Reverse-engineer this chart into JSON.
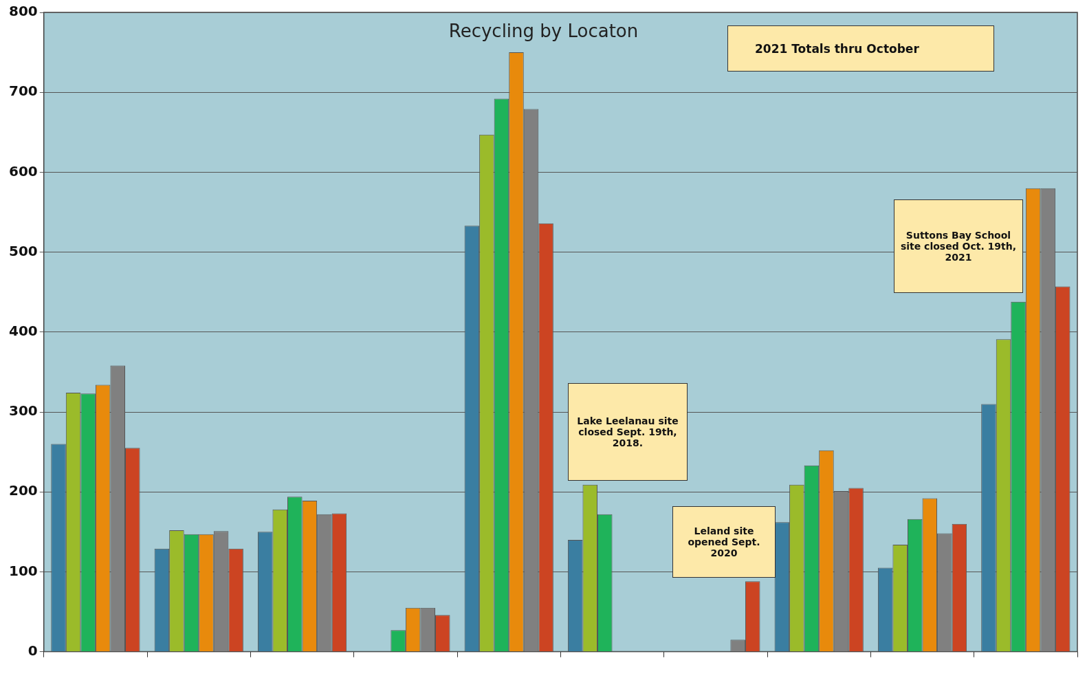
{
  "chart_data": {
    "type": "bar",
    "title": "Recycling by Locaton",
    "categories": [
      null,
      null,
      null,
      null,
      null,
      null,
      null,
      null,
      null,
      null
    ],
    "series": [
      {
        "color": "#3a7ea1",
        "values": [
          260,
          129,
          150,
          0,
          533,
          140,
          0,
          162,
          105,
          310
        ]
      },
      {
        "color": "#9bbb2a",
        "values": [
          324,
          152,
          178,
          0,
          647,
          209,
          0,
          209,
          134,
          391
        ]
      },
      {
        "color": "#1fb35a",
        "values": [
          323,
          147,
          194,
          27,
          692,
          172,
          0,
          233,
          166,
          438
        ]
      },
      {
        "color": "#e88a0c",
        "values": [
          334,
          147,
          189,
          55,
          750,
          0,
          0,
          252,
          192,
          580
        ]
      },
      {
        "color": "#808080",
        "values": [
          358,
          151,
          172,
          55,
          679,
          0,
          15,
          201,
          148,
          580
        ]
      },
      {
        "color": "#cc4422",
        "values": [
          255,
          129,
          173,
          46,
          536,
          0,
          88,
          205,
          160,
          457
        ]
      }
    ],
    "ylim": [
      0,
      800
    ],
    "yticks": [
      0,
      100,
      200,
      300,
      400,
      500,
      600,
      700,
      800
    ],
    "grid": "y",
    "legend": false,
    "annotations": [
      "2021 Totals thru October",
      "Lake Leelanau site closed Sept. 19th, 2018.",
      "Leland site opened Sept. 2020",
      "Suttons Bay School site closed Oct. 19th, 2021"
    ]
  }
}
